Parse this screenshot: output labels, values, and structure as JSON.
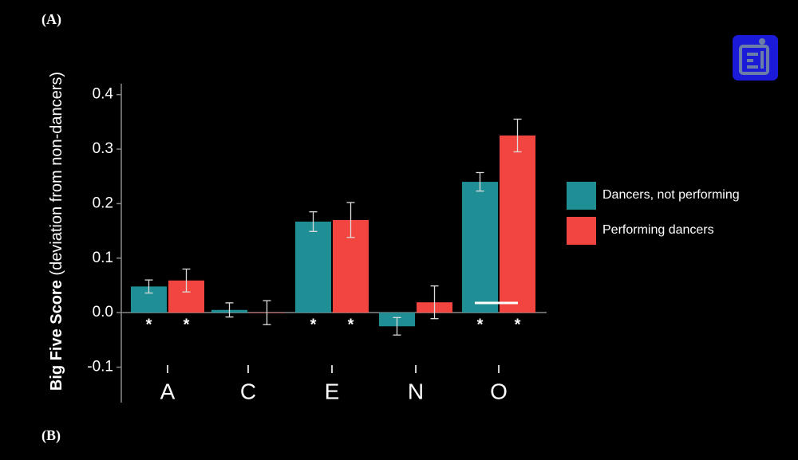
{
  "panel_labels": [
    "(A)",
    "(B)"
  ],
  "chart_data": {
    "type": "bar",
    "ylabel": "Big Five Score",
    "ylabel_note": "(deviation from non-dancers)",
    "categories": [
      "A",
      "C",
      "E",
      "N",
      "O"
    ],
    "series": [
      {
        "name": "Dancers, not performing",
        "color": "#1f8f95",
        "values": [
          0.048,
          0.005,
          0.167,
          -0.025,
          0.24
        ],
        "errors": [
          0.012,
          0.013,
          0.018,
          0.016,
          0.017
        ],
        "significance": [
          "*",
          null,
          "*",
          null,
          "*"
        ]
      },
      {
        "name": "Performing dancers",
        "color": "#f2453f",
        "values": [
          0.059,
          0.0,
          0.17,
          0.019,
          0.325
        ],
        "errors": [
          0.021,
          0.022,
          0.032,
          0.03,
          0.03
        ],
        "significance": [
          "*",
          null,
          "*",
          null,
          "*"
        ]
      }
    ],
    "ylim": [
      -0.165,
      0.42
    ],
    "yticks": [
      -0.1,
      {
        "value": 0,
        "label": "0.0"
      },
      0.1,
      0.2,
      0.3,
      0.4
    ]
  }
}
